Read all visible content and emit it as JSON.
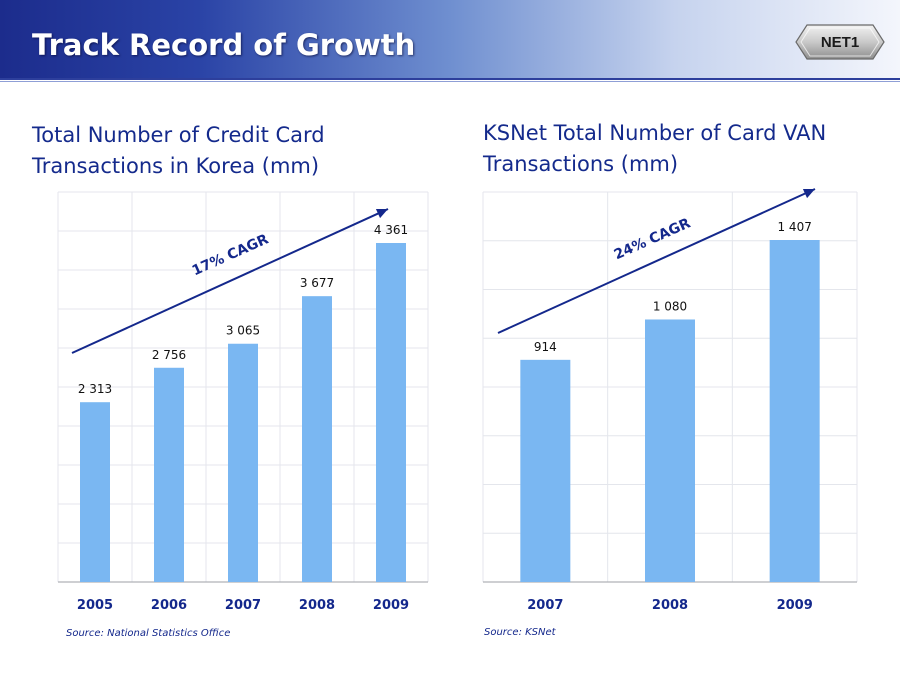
{
  "header": {
    "title": "Track Record of Growth",
    "logo_text": "NET1"
  },
  "colors": {
    "bar": "#7ab7f2",
    "text_dark": "#14288c",
    "grid": "#e4e6ec"
  },
  "chart_data": [
    {
      "type": "bar",
      "title": "Total Number of Credit Card Transactions in Korea (mm)",
      "title_lines": [
        "Total Number of Credit Card",
        "Transactions in Korea (mm)"
      ],
      "categories": [
        "2005",
        "2006",
        "2007",
        "2008",
        "2009"
      ],
      "values": [
        2313,
        2756,
        3065,
        3677,
        4361
      ],
      "value_labels": [
        "2 313",
        "2 756",
        "3 065",
        "3 677",
        "4 361"
      ],
      "annotation": "17% CAGR",
      "source": "Source: National Statistics Office",
      "ylim": [
        0,
        5000
      ],
      "grid": true
    },
    {
      "type": "bar",
      "title": "KSNet Total Number of Card VAN Transactions (mm)",
      "title_lines": [
        "KSNet Total Number of Card VAN",
        "Transactions (mm)"
      ],
      "categories": [
        "2007",
        "2008",
        "2009"
      ],
      "values": [
        914,
        1080,
        1407
      ],
      "value_labels": [
        "914",
        "1 080",
        "1 407"
      ],
      "annotation": "24% CAGR",
      "source": "Source: KSNet",
      "ylim": [
        0,
        1600
      ],
      "grid": true
    }
  ]
}
